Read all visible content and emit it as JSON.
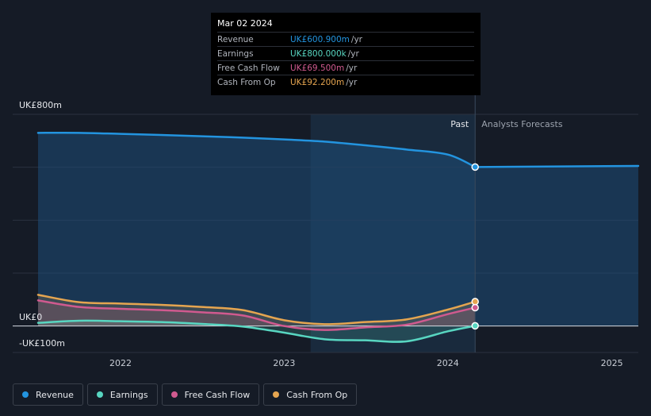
{
  "chart_data": {
    "type": "line",
    "x_label": "",
    "y_label": "",
    "y_axis_labels": {
      "top": "UK£800m",
      "zero": "UK£0",
      "bottom": "-UK£100m"
    },
    "ylim": [
      -100,
      800
    ],
    "xlim": [
      "2021-07-01",
      "2025-03-01"
    ],
    "x_ticks": [
      {
        "label": "2022",
        "date": "2022-01-01"
      },
      {
        "label": "2023",
        "date": "2023-01-01"
      },
      {
        "label": "2024",
        "date": "2024-01-01"
      },
      {
        "label": "2025",
        "date": "2025-01-01"
      }
    ],
    "grid": true,
    "past_label": "Past",
    "forecast_label": "Analysts Forecasts",
    "series": [
      {
        "name": "Revenue",
        "color": "#2394df",
        "x": [
          "2021-07-01",
          "2021-10-01",
          "2022-01-01",
          "2022-04-01",
          "2022-07-01",
          "2022-10-01",
          "2023-01-01",
          "2023-04-01",
          "2023-07-01",
          "2023-10-01",
          "2024-01-01",
          "2024-03-02"
        ],
        "y": [
          730,
          730,
          726,
          722,
          717,
          712,
          705,
          697,
          683,
          667,
          648,
          601
        ]
      },
      {
        "name": "Revenue Forecast",
        "color": "#2394df",
        "x": [
          "2024-03-02",
          "2025-03-01"
        ],
        "y": [
          601,
          605
        ]
      },
      {
        "name": "Earnings",
        "color": "#58d6c1",
        "x": [
          "2021-07-01",
          "2021-10-01",
          "2022-01-01",
          "2022-04-01",
          "2022-07-01",
          "2022-10-01",
          "2023-01-01",
          "2023-04-01",
          "2023-07-01",
          "2023-10-01",
          "2024-01-01",
          "2024-03-02"
        ],
        "y": [
          12,
          20,
          18,
          15,
          8,
          -2,
          -25,
          -50,
          -54,
          -58,
          -20,
          0.8
        ]
      },
      {
        "name": "Free Cash Flow",
        "color": "#d05a8f",
        "x": [
          "2021-07-01",
          "2021-10-01",
          "2022-01-01",
          "2022-04-01",
          "2022-07-01",
          "2022-10-01",
          "2023-01-01",
          "2023-04-01",
          "2023-07-01",
          "2023-10-01",
          "2024-01-01",
          "2024-03-02"
        ],
        "y": [
          97,
          72,
          65,
          60,
          52,
          40,
          0,
          -15,
          -5,
          5,
          45,
          69.5
        ]
      },
      {
        "name": "Cash From Op",
        "color": "#e5a550",
        "x": [
          "2021-07-01",
          "2021-10-01",
          "2022-01-01",
          "2022-04-01",
          "2022-07-01",
          "2022-10-01",
          "2023-01-01",
          "2023-04-01",
          "2023-07-01",
          "2023-10-01",
          "2024-01-01",
          "2024-03-02"
        ],
        "y": [
          118,
          90,
          85,
          80,
          72,
          60,
          22,
          7,
          15,
          25,
          62,
          92.2
        ]
      }
    ],
    "highlight": {
      "date": "Mar 02 2024",
      "x": "2024-03-02",
      "rows": [
        {
          "label": "Revenue",
          "value": "UK£600.900m",
          "unit": "/yr",
          "color": "#2394df"
        },
        {
          "label": "Earnings",
          "value": "UK£800.000k",
          "unit": "/yr",
          "color": "#58d6c1"
        },
        {
          "label": "Free Cash Flow",
          "value": "UK£69.500m",
          "unit": "/yr",
          "color": "#d05a8f"
        },
        {
          "label": "Cash From Op",
          "value": "UK£92.200m",
          "unit": "/yr",
          "color": "#e5a550"
        }
      ]
    }
  },
  "legend": [
    {
      "label": "Revenue",
      "color": "#2394df"
    },
    {
      "label": "Earnings",
      "color": "#58d6c1"
    },
    {
      "label": "Free Cash Flow",
      "color": "#d05a8f"
    },
    {
      "label": "Cash From Op",
      "color": "#e5a550"
    }
  ]
}
